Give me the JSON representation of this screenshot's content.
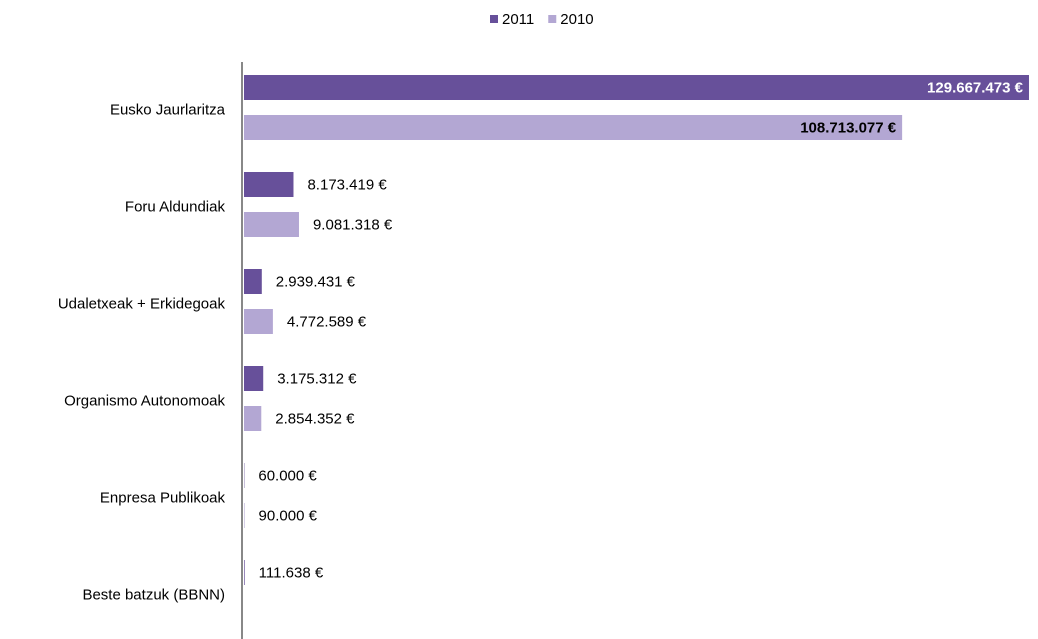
{
  "chart_data": {
    "type": "bar",
    "orientation": "horizontal",
    "categories": [
      "Eusko Jaurlaritza",
      "Foru Aldundiak",
      "Udaletxeak + Erkidegoak",
      "Organismo Autonomoak",
      "Enpresa Publikoak",
      "Beste batzuk (BBNN)"
    ],
    "series": [
      {
        "name": "2011",
        "color": "#67509a",
        "values": [
          129667473,
          8173419,
          2939431,
          3175312,
          60000,
          111638
        ],
        "value_labels": [
          "129.667.473 €",
          "8.173.419 €",
          "2.939.431 €",
          "3.175.312 €",
          "60.000 €",
          "111.638 €"
        ]
      },
      {
        "name": "2010",
        "color": "#b3a7d3",
        "values": [
          108713077,
          9081318,
          4772589,
          2854352,
          90000,
          null
        ],
        "value_labels": [
          "108.713.077 €",
          "9.081.318 €",
          "4.772.589 €",
          "2.854.352 €",
          "90.000 €",
          null
        ]
      }
    ],
    "xlim": [
      0,
      130000000
    ],
    "legend": "top"
  }
}
